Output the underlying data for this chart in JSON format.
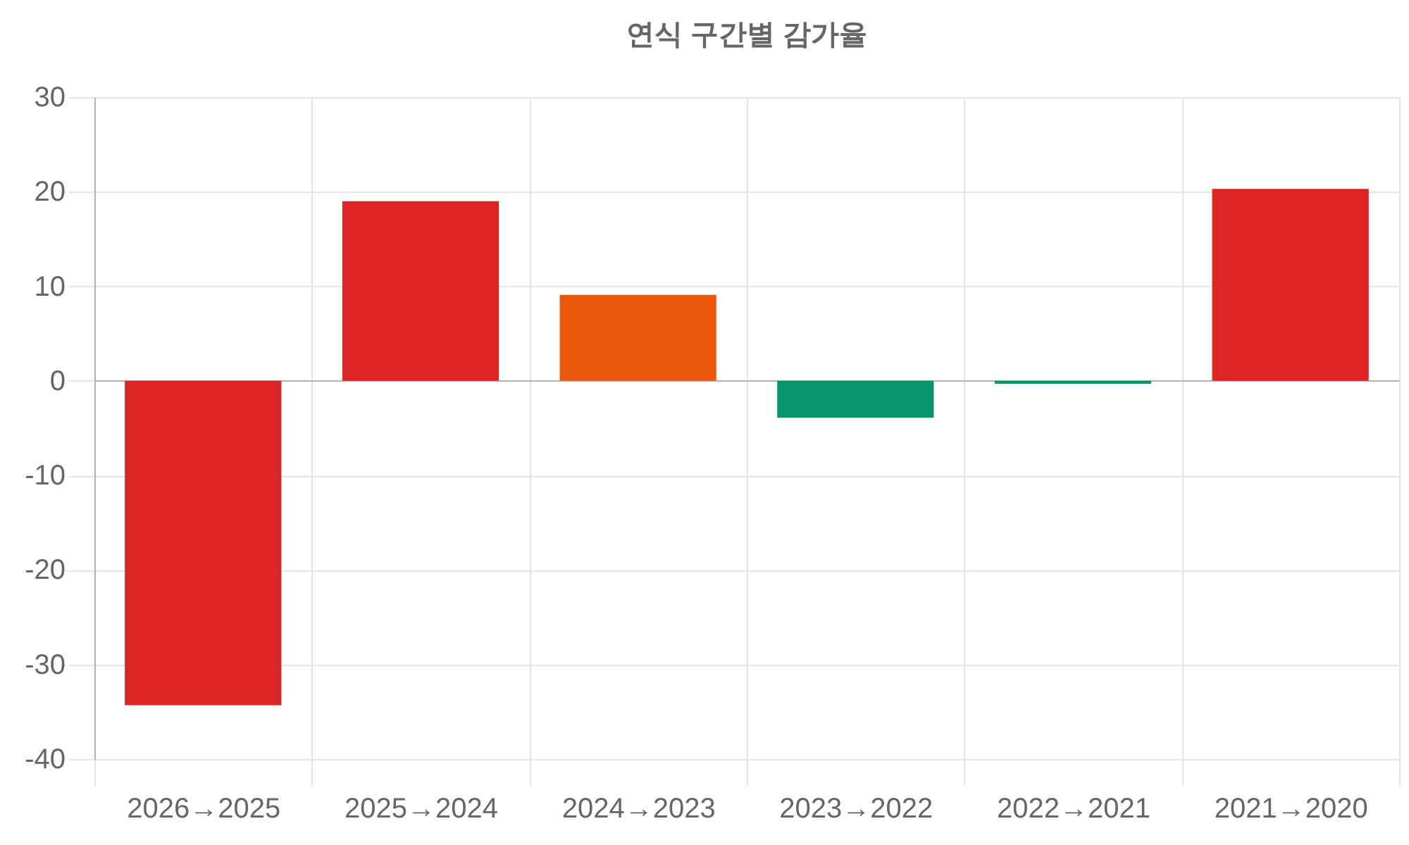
{
  "chart_data": {
    "type": "bar",
    "title": "연식 구간별 감가율",
    "categories": [
      "2026→2025",
      "2025→2024",
      "2024→2023",
      "2023→2022",
      "2022→2021",
      "2021→2020"
    ],
    "values": [
      -34.3,
      19.0,
      9.1,
      -3.9,
      -0.3,
      20.3
    ],
    "colors": [
      "#dc2626",
      "#dc2626",
      "#ea580c",
      "#059669",
      "#059669",
      "#dc2626"
    ],
    "ylim": [
      -40,
      30
    ],
    "yticks": [
      -40,
      -30,
      -20,
      -10,
      0,
      10,
      20,
      30
    ],
    "grid": true
  }
}
